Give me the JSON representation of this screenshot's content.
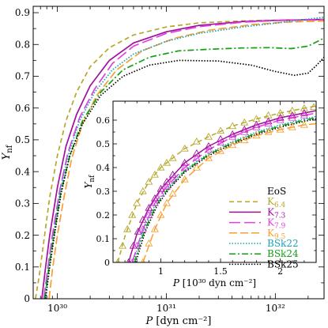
{
  "chart_data": [
    {
      "type": "line",
      "xscale": "log",
      "xlabel": "P [dyn cm⁻²]",
      "ylabel": "Y_nf",
      "xlim": [
        6e+29,
        2.8e+32
      ],
      "ylim": [
        0,
        0.92
      ],
      "xtick_labels": [
        "10³⁰",
        "10³¹",
        "10³²"
      ],
      "xticks": [
        1e+30,
        1e+31,
        1e+32
      ],
      "ytick_labels": [
        "0",
        "0.1",
        "0.2",
        "0.3",
        "0.4",
        "0.5",
        "0.6",
        "0.7",
        "0.8",
        "0.9"
      ],
      "yticks": [
        0,
        0.1,
        0.2,
        0.3,
        0.4,
        0.5,
        0.6,
        0.7,
        0.8,
        0.9
      ],
      "series": [
        {
          "name": "K6.4",
          "color": "#b5a82a",
          "dash": "6,4",
          "x": [
            6.3e+29,
            6.8e+29,
            7.5e+29,
            8.5e+29,
            1e+30,
            1.2e+30,
            1.5e+30,
            2e+30,
            3e+30,
            5e+30,
            1e+31,
            2e+31,
            5e+31,
            1e+32,
            2.8e+32
          ],
          "y": [
            0.0,
            0.07,
            0.18,
            0.32,
            0.45,
            0.56,
            0.65,
            0.73,
            0.79,
            0.83,
            0.855,
            0.868,
            0.874,
            0.876,
            0.877
          ]
        },
        {
          "name": "K7.3",
          "color": "#a0109a",
          "dash": "",
          "x": [
            7.2e+29,
            7.8e+29,
            8.5e+29,
            1e+30,
            1.2e+30,
            1.5e+30,
            2e+30,
            3e+30,
            5e+30,
            1e+31,
            2e+31,
            5e+31,
            1e+32,
            2.8e+32
          ],
          "y": [
            0.0,
            0.1,
            0.2,
            0.35,
            0.48,
            0.58,
            0.67,
            0.75,
            0.805,
            0.84,
            0.86,
            0.872,
            0.876,
            0.879
          ]
        },
        {
          "name": "K7.9",
          "color": "#e040e0",
          "dash": "14,5",
          "x": [
            7.5e+29,
            8.2e+29,
            9e+29,
            1.05e+30,
            1.25e+30,
            1.6e+30,
            2.2e+30,
            3.2e+30,
            5e+30,
            1e+31,
            2e+31,
            5e+31,
            1e+32,
            2.8e+32
          ],
          "y": [
            0.0,
            0.1,
            0.2,
            0.34,
            0.46,
            0.57,
            0.66,
            0.74,
            0.795,
            0.835,
            0.856,
            0.87,
            0.875,
            0.878
          ]
        },
        {
          "name": "K9.5",
          "color": "#f5a031",
          "dash": "10,4",
          "x": [
            8.4e+29,
            9e+29,
            1e+30,
            1.15e+30,
            1.35e+30,
            1.7e+30,
            2.3e+30,
            3.5e+30,
            6e+30,
            1.2e+31,
            2.5e+31,
            6e+31,
            1.2e+32,
            2.8e+32
          ],
          "y": [
            0.0,
            0.09,
            0.2,
            0.32,
            0.44,
            0.55,
            0.64,
            0.72,
            0.78,
            0.82,
            0.845,
            0.862,
            0.87,
            0.874
          ]
        },
        {
          "name": "BSk22",
          "color": "#1aa3b5",
          "dash": "1.5,2",
          "x": [
            7.6e+29,
            8.3e+29,
            9.2e+29,
            1.05e+30,
            1.25e+30,
            1.6e+30,
            2.2e+30,
            3.2e+30,
            5e+30,
            1e+31,
            2e+31,
            5e+31,
            1e+32,
            2.8e+32
          ],
          "y": [
            0.0,
            0.1,
            0.2,
            0.33,
            0.45,
            0.56,
            0.65,
            0.72,
            0.77,
            0.81,
            0.835,
            0.855,
            0.867,
            0.886
          ]
        },
        {
          "name": "BSk24",
          "color": "#13a013",
          "dash": "8,3,2,3",
          "x": [
            7.7e+29,
            8.4e+29,
            9.3e+29,
            1.07e+30,
            1.3e+30,
            1.7e+30,
            2.5e+30,
            4e+30,
            7e+30,
            1.3e+31,
            2.5e+31,
            5e+31,
            9e+31,
            1.4e+32,
            2e+32,
            2.8e+32
          ],
          "y": [
            0.0,
            0.1,
            0.2,
            0.33,
            0.45,
            0.56,
            0.65,
            0.72,
            0.76,
            0.78,
            0.785,
            0.789,
            0.79,
            0.787,
            0.795,
            0.82
          ]
        },
        {
          "name": "BSk25",
          "color": "#000000",
          "dash": "1.5,2",
          "x": [
            7.8e+29,
            8.5e+29,
            9.4e+29,
            1.08e+30,
            1.3e+30,
            1.7e+30,
            2.5e+30,
            4e+30,
            7e+30,
            1.3e+31,
            3e+31,
            6e+31,
            1e+32,
            1.5e+32,
            2e+32,
            2.4e+32,
            2.8e+32
          ],
          "y": [
            0.0,
            0.1,
            0.2,
            0.33,
            0.45,
            0.55,
            0.64,
            0.7,
            0.735,
            0.75,
            0.748,
            0.735,
            0.715,
            0.703,
            0.71,
            0.735,
            0.76
          ]
        }
      ]
    },
    {
      "type": "line",
      "xscale": "linear",
      "xlabel": "P [10³⁰ dyn cm⁻²]",
      "ylabel": "Y_nf",
      "xlim": [
        0.6,
        2.3
      ],
      "ylim": [
        0,
        0.68
      ],
      "xtick_labels": [
        "1",
        "1.5",
        "2"
      ],
      "xticks": [
        1,
        1.5,
        2
      ],
      "ytick_labels": [
        "0",
        "0.1",
        "0.2",
        "0.3",
        "0.4",
        "0.5",
        "0.6"
      ],
      "yticks": [
        0,
        0.1,
        0.2,
        0.3,
        0.4,
        0.5,
        0.6
      ],
      "legend_title": "EoS",
      "legend_position": "right",
      "markers": [
        {
          "name": "K6.4",
          "color": "#b5a82a",
          "x": [
            0.64,
            0.68,
            0.72,
            0.76,
            0.8,
            0.85,
            0.9,
            0.95,
            1.0,
            1.05,
            1.1,
            1.2,
            1.3,
            1.4,
            1.5,
            1.6,
            1.7,
            1.8,
            1.9,
            2.0,
            2.1,
            2.2,
            2.28
          ],
          "y": [
            0.0,
            0.07,
            0.14,
            0.2,
            0.25,
            0.3,
            0.34,
            0.37,
            0.4,
            0.42,
            0.44,
            0.48,
            0.51,
            0.53,
            0.555,
            0.575,
            0.59,
            0.605,
            0.62,
            0.63,
            0.64,
            0.65,
            0.655
          ]
        },
        {
          "name": "K7.3",
          "color": "#a0109a",
          "x": [
            0.73,
            0.77,
            0.81,
            0.85,
            0.9,
            0.95,
            1.0,
            1.05,
            1.1,
            1.2,
            1.3,
            1.4,
            1.5,
            1.6,
            1.7,
            1.8,
            1.9,
            2.0,
            2.1,
            2.2
          ],
          "y": [
            0.0,
            0.07,
            0.13,
            0.18,
            0.23,
            0.27,
            0.31,
            0.34,
            0.37,
            0.42,
            0.46,
            0.49,
            0.52,
            0.54,
            0.56,
            0.58,
            0.595,
            0.61,
            0.62,
            0.63
          ]
        },
        {
          "name": "K7.9",
          "color": "#e040e0",
          "x": [
            0.76,
            0.8,
            0.85,
            0.9,
            0.95,
            1.0,
            1.05,
            1.1,
            1.2,
            1.3,
            1.4,
            1.5,
            1.6,
            1.7,
            1.8,
            1.9,
            2.0,
            2.1,
            2.2
          ],
          "y": [
            0.0,
            0.07,
            0.14,
            0.2,
            0.25,
            0.29,
            0.32,
            0.35,
            0.4,
            0.44,
            0.475,
            0.505,
            0.53,
            0.55,
            0.57,
            0.585,
            0.6,
            0.61,
            0.62
          ]
        },
        {
          "name": "K9.5",
          "color": "#f5a031",
          "x": [
            0.85,
            0.9,
            0.95,
            1.0,
            1.05,
            1.1,
            1.2,
            1.3,
            1.4,
            1.5,
            1.6,
            1.7,
            1.8,
            1.9,
            2.0,
            2.1,
            2.2
          ],
          "y": [
            0.0,
            0.08,
            0.14,
            0.2,
            0.25,
            0.29,
            0.35,
            0.4,
            0.44,
            0.47,
            0.495,
            0.515,
            0.535,
            0.55,
            0.56,
            0.57,
            0.58
          ]
        }
      ],
      "series": [
        {
          "name": "K6.4",
          "color": "#b5a82a",
          "dash": "6,4",
          "x": [
            0.64,
            0.7,
            0.8,
            0.9,
            1.0,
            1.2,
            1.4,
            1.6,
            1.8,
            2.0,
            2.2,
            2.3
          ],
          "y": [
            0.0,
            0.11,
            0.25,
            0.34,
            0.4,
            0.48,
            0.53,
            0.575,
            0.605,
            0.63,
            0.65,
            0.66
          ]
        },
        {
          "name": "K7.3",
          "color": "#a0109a",
          "dash": "",
          "x": [
            0.73,
            0.8,
            0.9,
            1.0,
            1.2,
            1.4,
            1.6,
            1.8,
            2.0,
            2.2,
            2.3
          ],
          "y": [
            0.0,
            0.12,
            0.23,
            0.31,
            0.42,
            0.49,
            0.54,
            0.58,
            0.61,
            0.63,
            0.64
          ]
        },
        {
          "name": "K7.9",
          "color": "#e040e0",
          "dash": "14,5",
          "x": [
            0.76,
            0.85,
            0.95,
            1.05,
            1.2,
            1.4,
            1.6,
            1.8,
            2.0,
            2.2,
            2.3
          ],
          "y": [
            0.0,
            0.14,
            0.25,
            0.32,
            0.4,
            0.475,
            0.53,
            0.57,
            0.6,
            0.62,
            0.63
          ]
        },
        {
          "name": "K9.5",
          "color": "#f5a031",
          "dash": "10,4",
          "x": [
            0.85,
            0.95,
            1.05,
            1.2,
            1.4,
            1.6,
            1.8,
            2.0,
            2.2,
            2.3
          ],
          "y": [
            0.0,
            0.14,
            0.25,
            0.35,
            0.44,
            0.495,
            0.535,
            0.56,
            0.58,
            0.585
          ]
        },
        {
          "name": "BSk22",
          "color": "#1aa3b5",
          "dash": "1.5,2",
          "x": [
            0.77,
            0.85,
            0.95,
            1.05,
            1.2,
            1.4,
            1.6,
            1.8,
            2.0,
            2.2,
            2.3
          ],
          "y": [
            0.0,
            0.13,
            0.24,
            0.31,
            0.39,
            0.46,
            0.51,
            0.55,
            0.58,
            0.605,
            0.615
          ]
        },
        {
          "name": "BSk24",
          "color": "#13a013",
          "dash": "8,3,2,3",
          "x": [
            0.78,
            0.86,
            0.96,
            1.06,
            1.2,
            1.4,
            1.6,
            1.8,
            2.0,
            2.2,
            2.3
          ],
          "y": [
            0.0,
            0.13,
            0.24,
            0.31,
            0.385,
            0.455,
            0.505,
            0.545,
            0.575,
            0.6,
            0.61
          ]
        },
        {
          "name": "BSk25",
          "color": "#000000",
          "dash": "1.5,2",
          "x": [
            0.79,
            0.87,
            0.97,
            1.07,
            1.2,
            1.4,
            1.6,
            1.8,
            2.0,
            2.2,
            2.3
          ],
          "y": [
            0.0,
            0.13,
            0.24,
            0.31,
            0.38,
            0.45,
            0.5,
            0.54,
            0.57,
            0.595,
            0.605
          ]
        }
      ]
    }
  ]
}
